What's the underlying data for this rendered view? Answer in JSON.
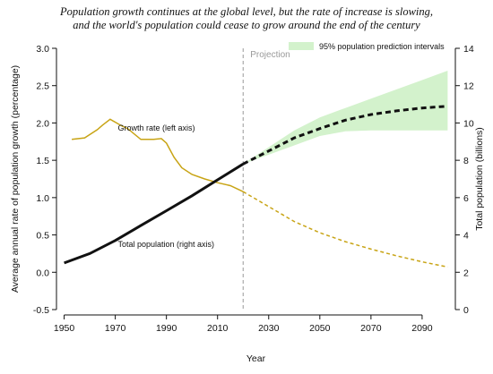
{
  "title_line1": "Population growth continues at the global level, but the rate of increase is slowing,",
  "title_line2": "and the world's population could cease to grow around the end of the century",
  "chart_data": {
    "type": "line",
    "xlabel": "Year",
    "ylabel_left": "Average annual rate of population growth (percentage)",
    "ylabel_right": "Total population (billions)",
    "xlim": [
      1947,
      2103
    ],
    "ylim_left": [
      -0.5,
      3.0
    ],
    "ylim_right": [
      0,
      14
    ],
    "x_ticks": [
      1950,
      1970,
      1990,
      2010,
      2030,
      2050,
      2070,
      2090
    ],
    "y_left_ticks": [
      -0.5,
      0.0,
      0.5,
      1.0,
      1.5,
      2.0,
      2.5,
      3.0
    ],
    "y_left_tick_labels": [
      "-0.5",
      "0.0",
      "0.5",
      "1.0",
      "1.5",
      "2.0",
      "2.5",
      "3.0"
    ],
    "y_right_ticks": [
      0,
      2,
      4,
      6,
      8,
      10,
      12,
      14
    ],
    "y_right_tick_labels": [
      "0",
      "2",
      "4",
      "6",
      "8",
      "10",
      "12",
      "14"
    ],
    "projection_year": 2020,
    "projection_label": "Projection",
    "legend_label": "95% population prediction intervals",
    "growth_annotation": "Growth rate (left axis)",
    "population_annotation": "Total population (right axis)",
    "growth_rate": {
      "axis": "left",
      "color": "#c8a415",
      "estimates": {
        "x": [
          1953,
          1958,
          1963,
          1965,
          1968,
          1972,
          1975,
          1980,
          1985,
          1988,
          1990,
          1993,
          1996,
          2000,
          2005,
          2010,
          2015,
          2020
        ],
        "y": [
          1.78,
          1.8,
          1.91,
          1.97,
          2.05,
          1.97,
          1.92,
          1.78,
          1.78,
          1.79,
          1.73,
          1.54,
          1.4,
          1.31,
          1.25,
          1.2,
          1.16,
          1.08
        ]
      },
      "projection": {
        "x": [
          2020,
          2030,
          2040,
          2050,
          2060,
          2070,
          2080,
          2090,
          2100
        ],
        "y": [
          1.08,
          0.88,
          0.68,
          0.53,
          0.41,
          0.31,
          0.22,
          0.14,
          0.07
        ]
      }
    },
    "total_population": {
      "axis": "right",
      "color": "#111111",
      "estimates": {
        "x": [
          1950,
          1960,
          1970,
          1980,
          1990,
          2000,
          2010,
          2020
        ],
        "y": [
          2.5,
          3.0,
          3.7,
          4.5,
          5.3,
          6.1,
          6.95,
          7.8
        ]
      },
      "projection": {
        "x": [
          2020,
          2030,
          2040,
          2050,
          2060,
          2070,
          2080,
          2090,
          2100
        ],
        "y": [
          7.8,
          8.5,
          9.2,
          9.7,
          10.15,
          10.45,
          10.65,
          10.8,
          10.9
        ]
      },
      "interval_95": {
        "fill": "#d3f2cc",
        "x": [
          2020,
          2030,
          2040,
          2050,
          2060,
          2070,
          2080,
          2090,
          2100
        ],
        "low": [
          7.8,
          8.3,
          8.8,
          9.3,
          9.55,
          9.6,
          9.6,
          9.6,
          9.6
        ],
        "high": [
          7.8,
          8.7,
          9.6,
          10.3,
          10.8,
          11.3,
          11.8,
          12.3,
          12.8
        ]
      }
    }
  }
}
